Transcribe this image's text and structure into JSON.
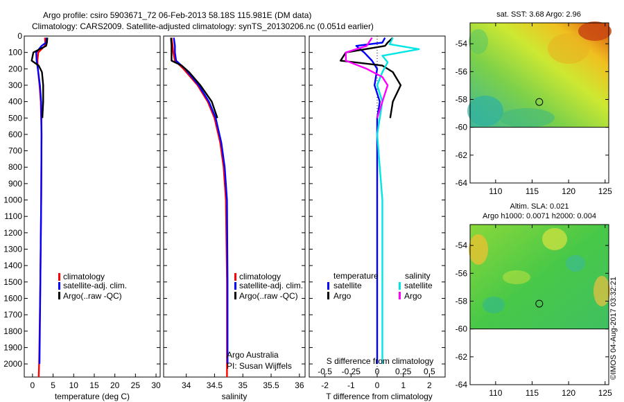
{
  "header": {
    "line1": "Argo profile: csiro 5903671_72 06-Feb-2013 58.18S 115.981E (DM data)",
    "line2": "Climatology: CARS2009. Satellite-adjusted climatology: synTS_20130206.nc (0.051d earlier)"
  },
  "colors": {
    "climatology": "#ff0000",
    "satellite": "#0000ff",
    "argo": "#000000",
    "sal_satellite": "#00e5e5",
    "sal_argo": "#ff00ff"
  },
  "chart_data": [
    {
      "type": "line",
      "name": "temperature-panel",
      "xlabel": "temperature (deg C)",
      "xlim": [
        -2,
        31
      ],
      "xticks": [
        0,
        5,
        10,
        15,
        20,
        25,
        30
      ],
      "ylim": [
        2080,
        0
      ],
      "yticks": [
        0,
        100,
        200,
        300,
        400,
        500,
        600,
        700,
        800,
        900,
        1000,
        1100,
        1200,
        1300,
        1400,
        1500,
        1600,
        1700,
        1800,
        1900,
        2000
      ],
      "legend": [
        "climatology",
        "satellite-adj. clim.",
        "Argo(..raw -QC)"
      ],
      "series": [
        {
          "name": "climatology",
          "points": [
            [
              3.0,
              10
            ],
            [
              3.1,
              40
            ],
            [
              3.0,
              60
            ],
            [
              1.4,
              100
            ],
            [
              1.2,
              150
            ],
            [
              1.3,
              200
            ],
            [
              1.7,
              300
            ],
            [
              2.0,
              400
            ],
            [
              2.2,
              600
            ],
            [
              2.1,
              1000
            ],
            [
              1.9,
              1500
            ],
            [
              1.6,
              2000
            ],
            [
              1.5,
              2080
            ]
          ]
        },
        {
          "name": "satellite-adj. clim.",
          "points": [
            [
              3.4,
              10
            ],
            [
              3.3,
              40
            ],
            [
              2.2,
              60
            ],
            [
              0.9,
              100
            ],
            [
              1.0,
              150
            ],
            [
              1.3,
              200
            ],
            [
              1.8,
              300
            ],
            [
              2.1,
              400
            ],
            [
              2.2,
              600
            ],
            [
              2.1,
              1000
            ],
            [
              1.9,
              1500
            ],
            [
              1.7,
              2000
            ]
          ]
        },
        {
          "name": "Argo(..raw -QC)",
          "points": [
            [
              3.6,
              10
            ],
            [
              3.5,
              40
            ],
            [
              3.3,
              60
            ],
            [
              0.2,
              100
            ],
            [
              -0.2,
              150
            ],
            [
              1.5,
              180
            ],
            [
              2.3,
              220
            ],
            [
              2.6,
              300
            ],
            [
              2.6,
              400
            ],
            [
              2.4,
              500
            ]
          ]
        }
      ]
    },
    {
      "type": "line",
      "name": "salinity-panel",
      "xlabel": "salinity",
      "xlim": [
        33.6,
        36.1
      ],
      "xticks": [
        34,
        34.5,
        35,
        35.5,
        36
      ],
      "ylim": [
        2080,
        0
      ],
      "legend": [
        "climatology",
        "satellite-adj. clim.",
        "Argo(..raw -QC)"
      ],
      "annotation": [
        "Argo Australia",
        "PI: Susan Wijffels"
      ],
      "series": [
        {
          "name": "climatology",
          "points": [
            [
              33.74,
              10
            ],
            [
              33.76,
              60
            ],
            [
              33.77,
              100
            ],
            [
              33.8,
              150
            ],
            [
              33.95,
              200
            ],
            [
              34.2,
              300
            ],
            [
              34.38,
              400
            ],
            [
              34.5,
              500
            ],
            [
              34.6,
              650
            ],
            [
              34.66,
              800
            ],
            [
              34.7,
              1000
            ],
            [
              34.72,
              1500
            ],
            [
              34.72,
              2080
            ]
          ]
        },
        {
          "name": "satellite-adj. clim.",
          "points": [
            [
              33.78,
              10
            ],
            [
              33.8,
              60
            ],
            [
              33.8,
              100
            ],
            [
              33.82,
              150
            ],
            [
              33.98,
              200
            ],
            [
              34.22,
              300
            ],
            [
              34.4,
              400
            ],
            [
              34.52,
              500
            ],
            [
              34.62,
              650
            ],
            [
              34.68,
              800
            ],
            [
              34.72,
              1000
            ],
            [
              34.73,
              1500
            ],
            [
              34.73,
              2000
            ]
          ]
        },
        {
          "name": "Argo(..raw -QC)",
          "points": [
            [
              33.73,
              10
            ],
            [
              33.74,
              60
            ],
            [
              33.74,
              100
            ],
            [
              33.74,
              150
            ],
            [
              33.92,
              180
            ],
            [
              34.05,
              220
            ],
            [
              34.25,
              300
            ],
            [
              34.45,
              400
            ],
            [
              34.55,
              500
            ]
          ]
        }
      ]
    },
    {
      "type": "line",
      "name": "difference-panel",
      "xlabel": "T difference from climatology",
      "xlabel_top": "S difference from climatology",
      "xlim": [
        -2.6,
        2.6
      ],
      "xticks": [
        -2,
        -1,
        0,
        1,
        2
      ],
      "xticks_top": [
        "-0.5",
        "-0.25",
        "0",
        "0.25",
        "0.5"
      ],
      "ylim": [
        2080,
        0
      ],
      "legend_title_temp": "temperature",
      "legend_title_sal": "salinity",
      "legend_temp": [
        "satellite",
        "Argo"
      ],
      "legend_sal": [
        "satellite",
        "Argo"
      ],
      "series": [
        {
          "name": "temperature satellite",
          "points": [
            [
              0.3,
              10
            ],
            [
              0.2,
              40
            ],
            [
              -0.8,
              60
            ],
            [
              -0.5,
              100
            ],
            [
              -0.2,
              150
            ],
            [
              0.0,
              200
            ],
            [
              -0.1,
              300
            ],
            [
              0.1,
              400
            ],
            [
              0.0,
              500
            ],
            [
              0.0,
              1000
            ],
            [
              0.0,
              2000
            ]
          ]
        },
        {
          "name": "temperature Argo",
          "points": [
            [
              0.6,
              10
            ],
            [
              0.4,
              40
            ],
            [
              0.3,
              60
            ],
            [
              -1.2,
              100
            ],
            [
              -1.4,
              150
            ],
            [
              0.2,
              180
            ],
            [
              0.6,
              220
            ],
            [
              0.9,
              300
            ],
            [
              0.6,
              400
            ],
            [
              0.5,
              500
            ]
          ]
        },
        {
          "name": "salinity satellite",
          "points": [
            [
              0.15,
              10
            ],
            [
              0.12,
              50
            ],
            [
              0.4,
              80
            ],
            [
              0.05,
              120
            ],
            [
              0.1,
              160
            ],
            [
              0.05,
              220
            ],
            [
              0.0,
              300
            ],
            [
              0.05,
              400
            ],
            [
              0.0,
              600
            ],
            [
              0.05,
              1000
            ],
            [
              0.05,
              1500
            ],
            [
              0.05,
              2000
            ]
          ]
        },
        {
          "name": "salinity Argo",
          "points": [
            [
              -0.05,
              10
            ],
            [
              -0.1,
              60
            ],
            [
              -0.3,
              100
            ],
            [
              -0.3,
              150
            ],
            [
              -0.1,
              200
            ],
            [
              0.05,
              250
            ],
            [
              0.1,
              300
            ],
            [
              0.05,
              400
            ],
            [
              0.0,
              500
            ]
          ]
        }
      ]
    },
    {
      "type": "heatmap",
      "name": "sst-map",
      "title": "sat. SST: 3.68 Argo: 2.96",
      "xlim": [
        106.5,
        125.5
      ],
      "ylim": [
        -64,
        -52.5
      ],
      "xticks": [
        110,
        115,
        120,
        125
      ],
      "yticks": [
        -54,
        -56,
        -58,
        -60,
        -62,
        -64
      ],
      "data_ylim": [
        -60,
        -52.5
      ],
      "marker": [
        115.981,
        -58.18
      ]
    },
    {
      "type": "heatmap",
      "name": "sla-map",
      "title": "Altim. SLA: 0.021",
      "subtitle": "Argo h1000: 0.0071 h2000: 0.004",
      "xlim": [
        106.5,
        125.5
      ],
      "ylim": [
        -64,
        -52.5
      ],
      "xticks": [
        110,
        115,
        120,
        125
      ],
      "yticks": [
        -54,
        -56,
        -58,
        -60,
        -62,
        -64
      ],
      "data_ylim": [
        -60,
        -52.5
      ],
      "marker": [
        115.981,
        -58.18
      ]
    }
  ],
  "footer": {
    "credit": "©IMOS 04-Aug-2017 03:32:21"
  }
}
